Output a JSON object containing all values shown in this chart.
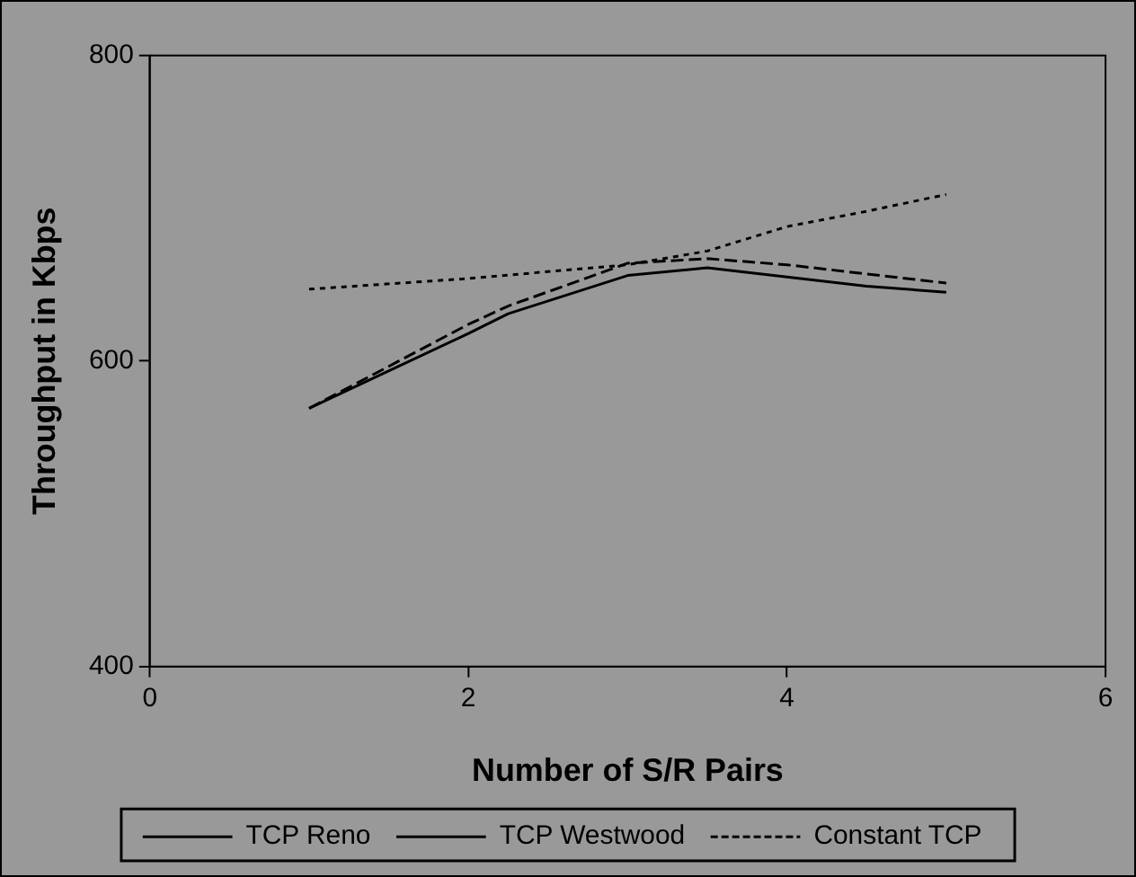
{
  "chart_data": {
    "type": "line",
    "xlabel": "Number of S/R Pairs",
    "ylabel": "Throughput in Kbps",
    "xlim": [
      0,
      6
    ],
    "xticks": [
      0,
      2,
      4,
      6
    ],
    "ylim": [
      400,
      800
    ],
    "yticks": [
      400,
      600,
      800
    ],
    "legend": "bottom",
    "marker": "none",
    "series": [
      {
        "name": "TCP Reno",
        "color": "#000000",
        "line_style": "solid",
        "x": [
          1,
          2,
          2.25,
          3,
          3.5,
          4.5,
          5
        ],
        "values": [
          569,
          618,
          631,
          656,
          661,
          649,
          645
        ]
      },
      {
        "name": "TCP Westwood",
        "color": "#000000",
        "line_style": "dashed",
        "x": [
          1,
          2,
          2.25,
          3,
          3.5,
          4,
          5
        ],
        "values": [
          569,
          624,
          636,
          664,
          667,
          663,
          651
        ]
      },
      {
        "name": "Constant TCP",
        "color": "#000000",
        "line_style": "dotted",
        "x": [
          1,
          2,
          3,
          3.5,
          4,
          4.5,
          5
        ],
        "values": [
          647,
          654,
          663,
          672,
          688,
          698,
          709
        ]
      }
    ]
  }
}
